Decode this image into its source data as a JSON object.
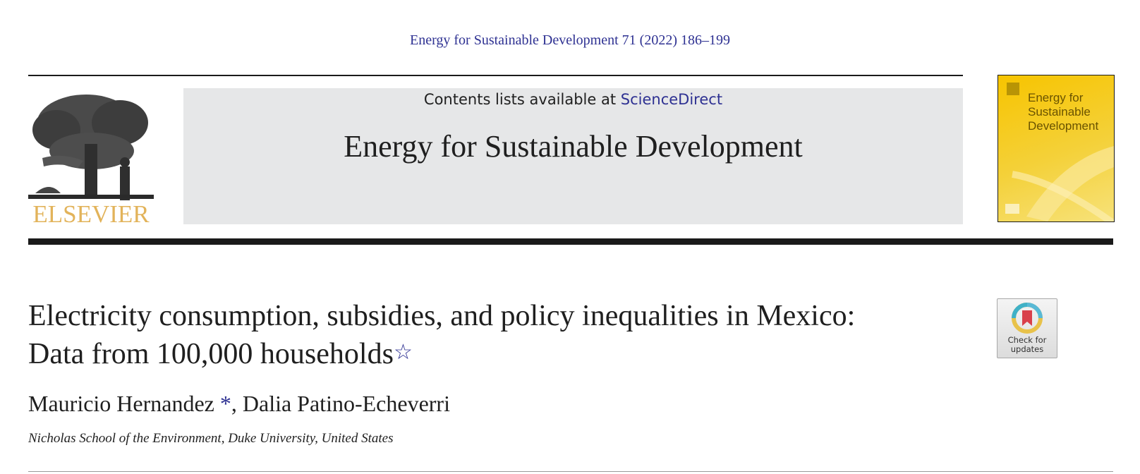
{
  "header": {
    "citation": "Energy for Sustainable Development 71 (2022) 186–199",
    "publisher": "ELSEVIER",
    "contents_prefix": "Contents lists available at ",
    "contents_link": "ScienceDirect",
    "journal_title": "Energy for Sustainable Development",
    "cover_title": "Energy for Sustainable Development"
  },
  "article": {
    "title_line1": "Electricity consumption, subsidies, and policy inequalities in Mexico:",
    "title_line2": "Data from 100,000 households",
    "title_mark": "☆",
    "author1": "Mauricio Hernandez ",
    "author1_mark": "*",
    "author_sep": ", ",
    "author2": "Dalia Patino-Echeverri",
    "affiliation": "Nicholas School of the Environment, Duke University, United States"
  },
  "badge": {
    "line1": "Check for",
    "line2": "updates"
  },
  "colors": {
    "link": "#2e3192",
    "publisher": "#e2b35a",
    "banner_bg": "#e6e7e8",
    "cover": "#f7c400"
  }
}
